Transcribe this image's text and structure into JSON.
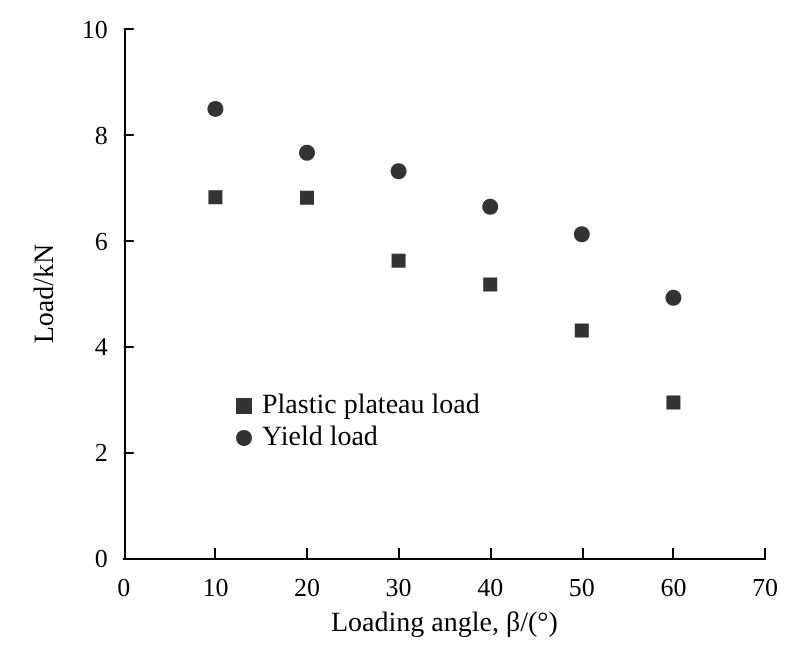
{
  "chart_data": {
    "type": "scatter",
    "xlabel": "Loading angle, β/(°)",
    "ylabel": "Load/kN",
    "x": [
      10,
      20,
      30,
      40,
      50,
      60
    ],
    "series": [
      {
        "name": "Plastic plateau load",
        "color": "#000000",
        "marker": "square",
        "values": [
          6.82,
          6.81,
          5.62,
          5.17,
          4.3,
          2.94
        ]
      },
      {
        "name": "Yield load",
        "color": "#000000",
        "marker": "circle",
        "values": [
          8.49,
          7.66,
          7.31,
          6.64,
          6.12,
          4.92
        ]
      }
    ],
    "xlim": [
      0,
      70
    ],
    "xticks": [
      0,
      10,
      20,
      30,
      40,
      50,
      60,
      70
    ],
    "ylim": [
      0,
      10
    ],
    "yticks": [
      0,
      2,
      4,
      6,
      8,
      10
    ],
    "grid": false,
    "legend": "bottom left"
  }
}
